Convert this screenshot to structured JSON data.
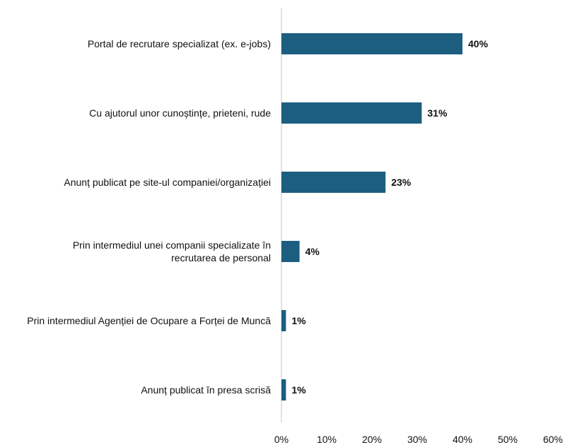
{
  "chart_data": {
    "type": "bar",
    "orientation": "horizontal",
    "categories": [
      "Portal de recrutare specializat (ex. e-jobs)",
      "Cu ajutorul unor cunoștințe, prieteni, rude",
      "Anunț publicat pe site-ul companiei/organizației",
      "Prin intermediul unei companii specializate în recrutarea de personal",
      "Prin intermediul Agenției de Ocupare a Forței de Muncă",
      "Anunț publicat în presa scrisă"
    ],
    "category_lines": [
      [
        "Portal de recrutare specializat (ex. e-jobs)"
      ],
      [
        "Cu ajutorul unor cunoștințe, prieteni, rude"
      ],
      [
        "Anunț publicat pe site-ul companiei/organizației"
      ],
      [
        "Prin intermediul unei companii specializate în",
        "recrutarea de personal"
      ],
      [
        "Prin intermediul Agenției de Ocupare a Forței de Muncă"
      ],
      [
        "Anunț publicat în presa scrisă"
      ]
    ],
    "values": [
      40,
      31,
      23,
      4,
      1,
      1
    ],
    "value_labels": [
      "40%",
      "31%",
      "23%",
      "4%",
      "1%",
      "1%"
    ],
    "xlim": [
      0,
      60
    ],
    "xticks": [
      0,
      10,
      20,
      30,
      40,
      50,
      60
    ],
    "xtick_labels": [
      "0%",
      "10%",
      "20%",
      "30%",
      "40%",
      "50%",
      "60%"
    ],
    "title": "",
    "xlabel": "",
    "ylabel": "",
    "grid": false,
    "legend": "none",
    "bar_color": "#1B5E80",
    "axis_color": "#D9D9D9"
  }
}
